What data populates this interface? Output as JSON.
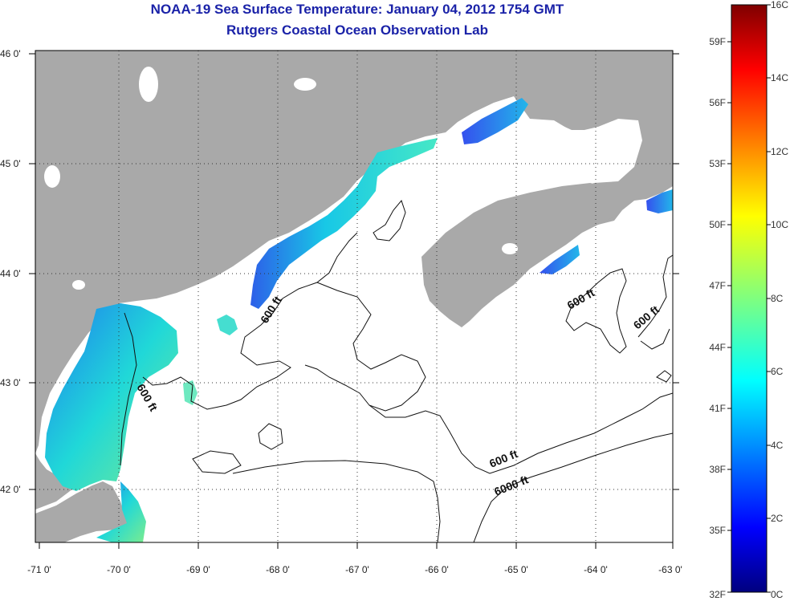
{
  "title_line1": "NOAA-19 Sea Surface Temperature:  January 04, 2012 1754 GMT",
  "title_line2": "Rutgers Coastal Ocean Observation Lab",
  "colors": {
    "land": "#a9a9a9",
    "no_data": "#ffffff",
    "title": "#1a22a8",
    "contour": "#111111"
  },
  "map": {
    "lon_range": [
      -71.0,
      -63.0
    ],
    "lat_range": [
      41.5,
      46.0
    ],
    "lon_ticks": [
      "-71 0'",
      "-70 0'",
      "-69 0'",
      "-68 0'",
      "-67 0'",
      "-66 0'",
      "-65 0'",
      "-64 0'",
      "-63 0'"
    ],
    "lat_ticks": [
      "46 0'",
      "45 0'",
      "44 0'",
      "43 0'",
      "42 0'"
    ],
    "grid": "dotted",
    "contour_labels": [
      "600 ft",
      "600 ft",
      "600 ft",
      "600 ft",
      "600 ft",
      "6000 ft"
    ]
  },
  "colorbar": {
    "celsius_labels": [
      "16C",
      "14C",
      "12C",
      "10C",
      "8C",
      "6C",
      "4C",
      "2C",
      "0C"
    ],
    "fahrenheit_labels": [
      "59F",
      "56F",
      "53F",
      "50F",
      "47F",
      "44F",
      "41F",
      "38F",
      "35F",
      "32F"
    ],
    "colormap": "jet"
  }
}
